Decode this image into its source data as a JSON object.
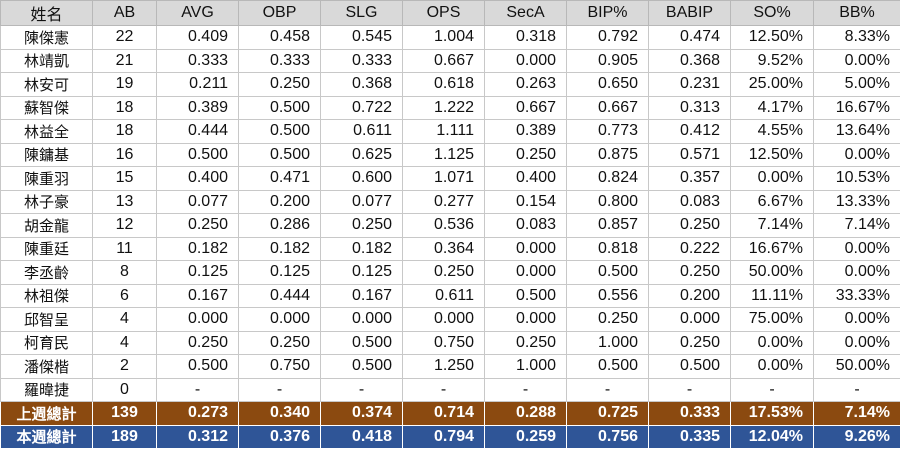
{
  "colors": {
    "header_bg": "#d9d9d9",
    "last_week_total_bg": "#8B4A10",
    "this_week_total_bg": "#2F5597"
  },
  "headers": [
    "姓名",
    "AB",
    "AVG",
    "OBP",
    "SLG",
    "OPS",
    "SecA",
    "BIP%",
    "BABIP",
    "SO%",
    "BB%"
  ],
  "players": [
    {
      "name": "陳傑憲",
      "ab": "22",
      "stats": [
        "0.409",
        "0.458",
        "0.545",
        "1.004",
        "0.318",
        "0.792",
        "0.474",
        "12.50%",
        "8.33%"
      ]
    },
    {
      "name": "林靖凱",
      "ab": "21",
      "stats": [
        "0.333",
        "0.333",
        "0.333",
        "0.667",
        "0.000",
        "0.905",
        "0.368",
        "9.52%",
        "0.00%"
      ]
    },
    {
      "name": "林安可",
      "ab": "19",
      "stats": [
        "0.211",
        "0.250",
        "0.368",
        "0.618",
        "0.263",
        "0.650",
        "0.231",
        "25.00%",
        "5.00%"
      ]
    },
    {
      "name": "蘇智傑",
      "ab": "18",
      "stats": [
        "0.389",
        "0.500",
        "0.722",
        "1.222",
        "0.667",
        "0.667",
        "0.313",
        "4.17%",
        "16.67%"
      ]
    },
    {
      "name": "林益全",
      "ab": "18",
      "stats": [
        "0.444",
        "0.500",
        "0.611",
        "1.111",
        "0.389",
        "0.773",
        "0.412",
        "4.55%",
        "13.64%"
      ]
    },
    {
      "name": "陳鏞基",
      "ab": "16",
      "stats": [
        "0.500",
        "0.500",
        "0.625",
        "1.125",
        "0.250",
        "0.875",
        "0.571",
        "12.50%",
        "0.00%"
      ]
    },
    {
      "name": "陳重羽",
      "ab": "15",
      "stats": [
        "0.400",
        "0.471",
        "0.600",
        "1.071",
        "0.400",
        "0.824",
        "0.357",
        "0.00%",
        "10.53%"
      ]
    },
    {
      "name": "林子豪",
      "ab": "13",
      "stats": [
        "0.077",
        "0.200",
        "0.077",
        "0.277",
        "0.154",
        "0.800",
        "0.083",
        "6.67%",
        "13.33%"
      ]
    },
    {
      "name": "胡金龍",
      "ab": "12",
      "stats": [
        "0.250",
        "0.286",
        "0.250",
        "0.536",
        "0.083",
        "0.857",
        "0.250",
        "7.14%",
        "7.14%"
      ]
    },
    {
      "name": "陳重廷",
      "ab": "11",
      "stats": [
        "0.182",
        "0.182",
        "0.182",
        "0.364",
        "0.000",
        "0.818",
        "0.222",
        "16.67%",
        "0.00%"
      ]
    },
    {
      "name": "李丞齡",
      "ab": "8",
      "stats": [
        "0.125",
        "0.125",
        "0.125",
        "0.250",
        "0.000",
        "0.500",
        "0.250",
        "50.00%",
        "0.00%"
      ]
    },
    {
      "name": "林祖傑",
      "ab": "6",
      "stats": [
        "0.167",
        "0.444",
        "0.167",
        "0.611",
        "0.500",
        "0.556",
        "0.200",
        "11.11%",
        "33.33%"
      ]
    },
    {
      "name": "邱智呈",
      "ab": "4",
      "stats": [
        "0.000",
        "0.000",
        "0.000",
        "0.000",
        "0.000",
        "0.250",
        "0.000",
        "75.00%",
        "0.00%"
      ]
    },
    {
      "name": "柯育民",
      "ab": "4",
      "stats": [
        "0.250",
        "0.250",
        "0.500",
        "0.750",
        "0.250",
        "1.000",
        "0.250",
        "0.00%",
        "0.00%"
      ]
    },
    {
      "name": "潘傑楷",
      "ab": "2",
      "stats": [
        "0.500",
        "0.750",
        "0.500",
        "1.250",
        "1.000",
        "0.500",
        "0.500",
        "0.00%",
        "50.00%"
      ]
    },
    {
      "name": "羅暐捷",
      "ab": "0",
      "stats": [
        "-",
        "-",
        "-",
        "-",
        "-",
        "-",
        "-",
        "-",
        "-"
      ]
    }
  ],
  "totals": [
    {
      "label": "上週總計",
      "ab": "139",
      "stats": [
        "0.273",
        "0.340",
        "0.374",
        "0.714",
        "0.288",
        "0.725",
        "0.333",
        "17.53%",
        "7.14%"
      ]
    },
    {
      "label": "本週總計",
      "ab": "189",
      "stats": [
        "0.312",
        "0.376",
        "0.418",
        "0.794",
        "0.259",
        "0.756",
        "0.335",
        "12.04%",
        "9.26%"
      ]
    }
  ]
}
